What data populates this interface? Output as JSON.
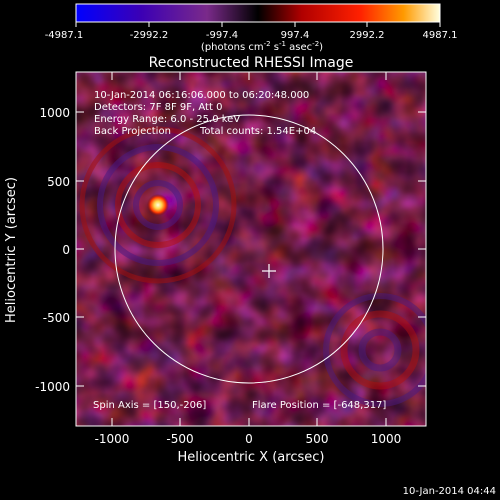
{
  "colorbar": {
    "ticks": [
      "-4987.1",
      "-2992.2",
      "-997.4",
      "997.4",
      "2992.2",
      "4987.1"
    ],
    "units_main": "(photons cm",
    "units_exp1": "-2",
    "units_s": " s",
    "units_exp2": "-1",
    "units_asec": " asec",
    "units_exp3": "-2",
    "units_close": ")"
  },
  "plot": {
    "title": "Reconstructed RHESSI Image",
    "xlabel": "Heliocentric X (arcsec)",
    "ylabel": "Heliocentric Y (arcsec)",
    "xticks": [
      "-1000",
      "-500",
      "0",
      "500",
      "1000"
    ],
    "yticks": [
      "1000",
      "500",
      "0",
      "-500",
      "-1000"
    ]
  },
  "info": {
    "line1": "10-Jan-2014 06:16:06.000 to 06:20:48.000",
    "line2": "Detectors: 7F 8F 9F, Att 0",
    "line3": "Energy Range: 6.0 - 25.0 keV",
    "line4a": "Back Projection",
    "line4b": "Total counts: 1.54E+04"
  },
  "footer": {
    "spin_axis": "Spin Axis = [150,-206]",
    "flare_position": "Flare Position = [-648,317]",
    "timestamp": "10-Jan-2014 04:44"
  },
  "colors": {
    "background": "#000000",
    "colorbar_stops": [
      "#0000ff",
      "#3c00b4",
      "#7a2a8a",
      "#000000",
      "#b00000",
      "#ff2000",
      "#ff9a00",
      "#ffffe0"
    ]
  }
}
